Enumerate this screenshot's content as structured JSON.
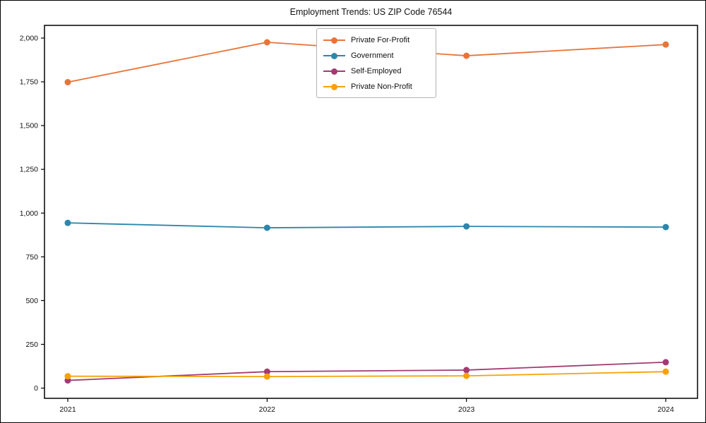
{
  "chart_data": {
    "type": "line",
    "title": "Employment Trends: US ZIP Code 76544",
    "xlabel": "",
    "ylabel": "",
    "categories": [
      "2021",
      "2022",
      "2023",
      "2024"
    ],
    "x": [
      2021,
      2022,
      2023,
      2024
    ],
    "series": [
      {
        "name": "Private For-Profit",
        "color": "#E8743B",
        "values": [
          1748,
          1976,
          1899,
          1963
        ]
      },
      {
        "name": "Government",
        "color": "#2E86AB",
        "values": [
          944,
          916,
          924,
          920
        ]
      },
      {
        "name": "Self-Employed",
        "color": "#A23B72",
        "values": [
          44,
          94,
          103,
          148
        ]
      },
      {
        "name": "Private Non-Profit",
        "color": "#F5A206",
        "values": [
          68,
          66,
          70,
          94
        ]
      }
    ],
    "yticks": [
      0,
      250,
      500,
      750,
      1000,
      1250,
      1500,
      1750,
      2000
    ],
    "ytick_labels": [
      "0",
      "250",
      "500",
      "750",
      "1,000",
      "1,250",
      "1,500",
      "1,750",
      "2,000"
    ],
    "ylim": [
      0,
      2000
    ],
    "grid": false,
    "legend_position": "upper center",
    "axis_color": "#000000",
    "tick_label_color": "#111111"
  }
}
